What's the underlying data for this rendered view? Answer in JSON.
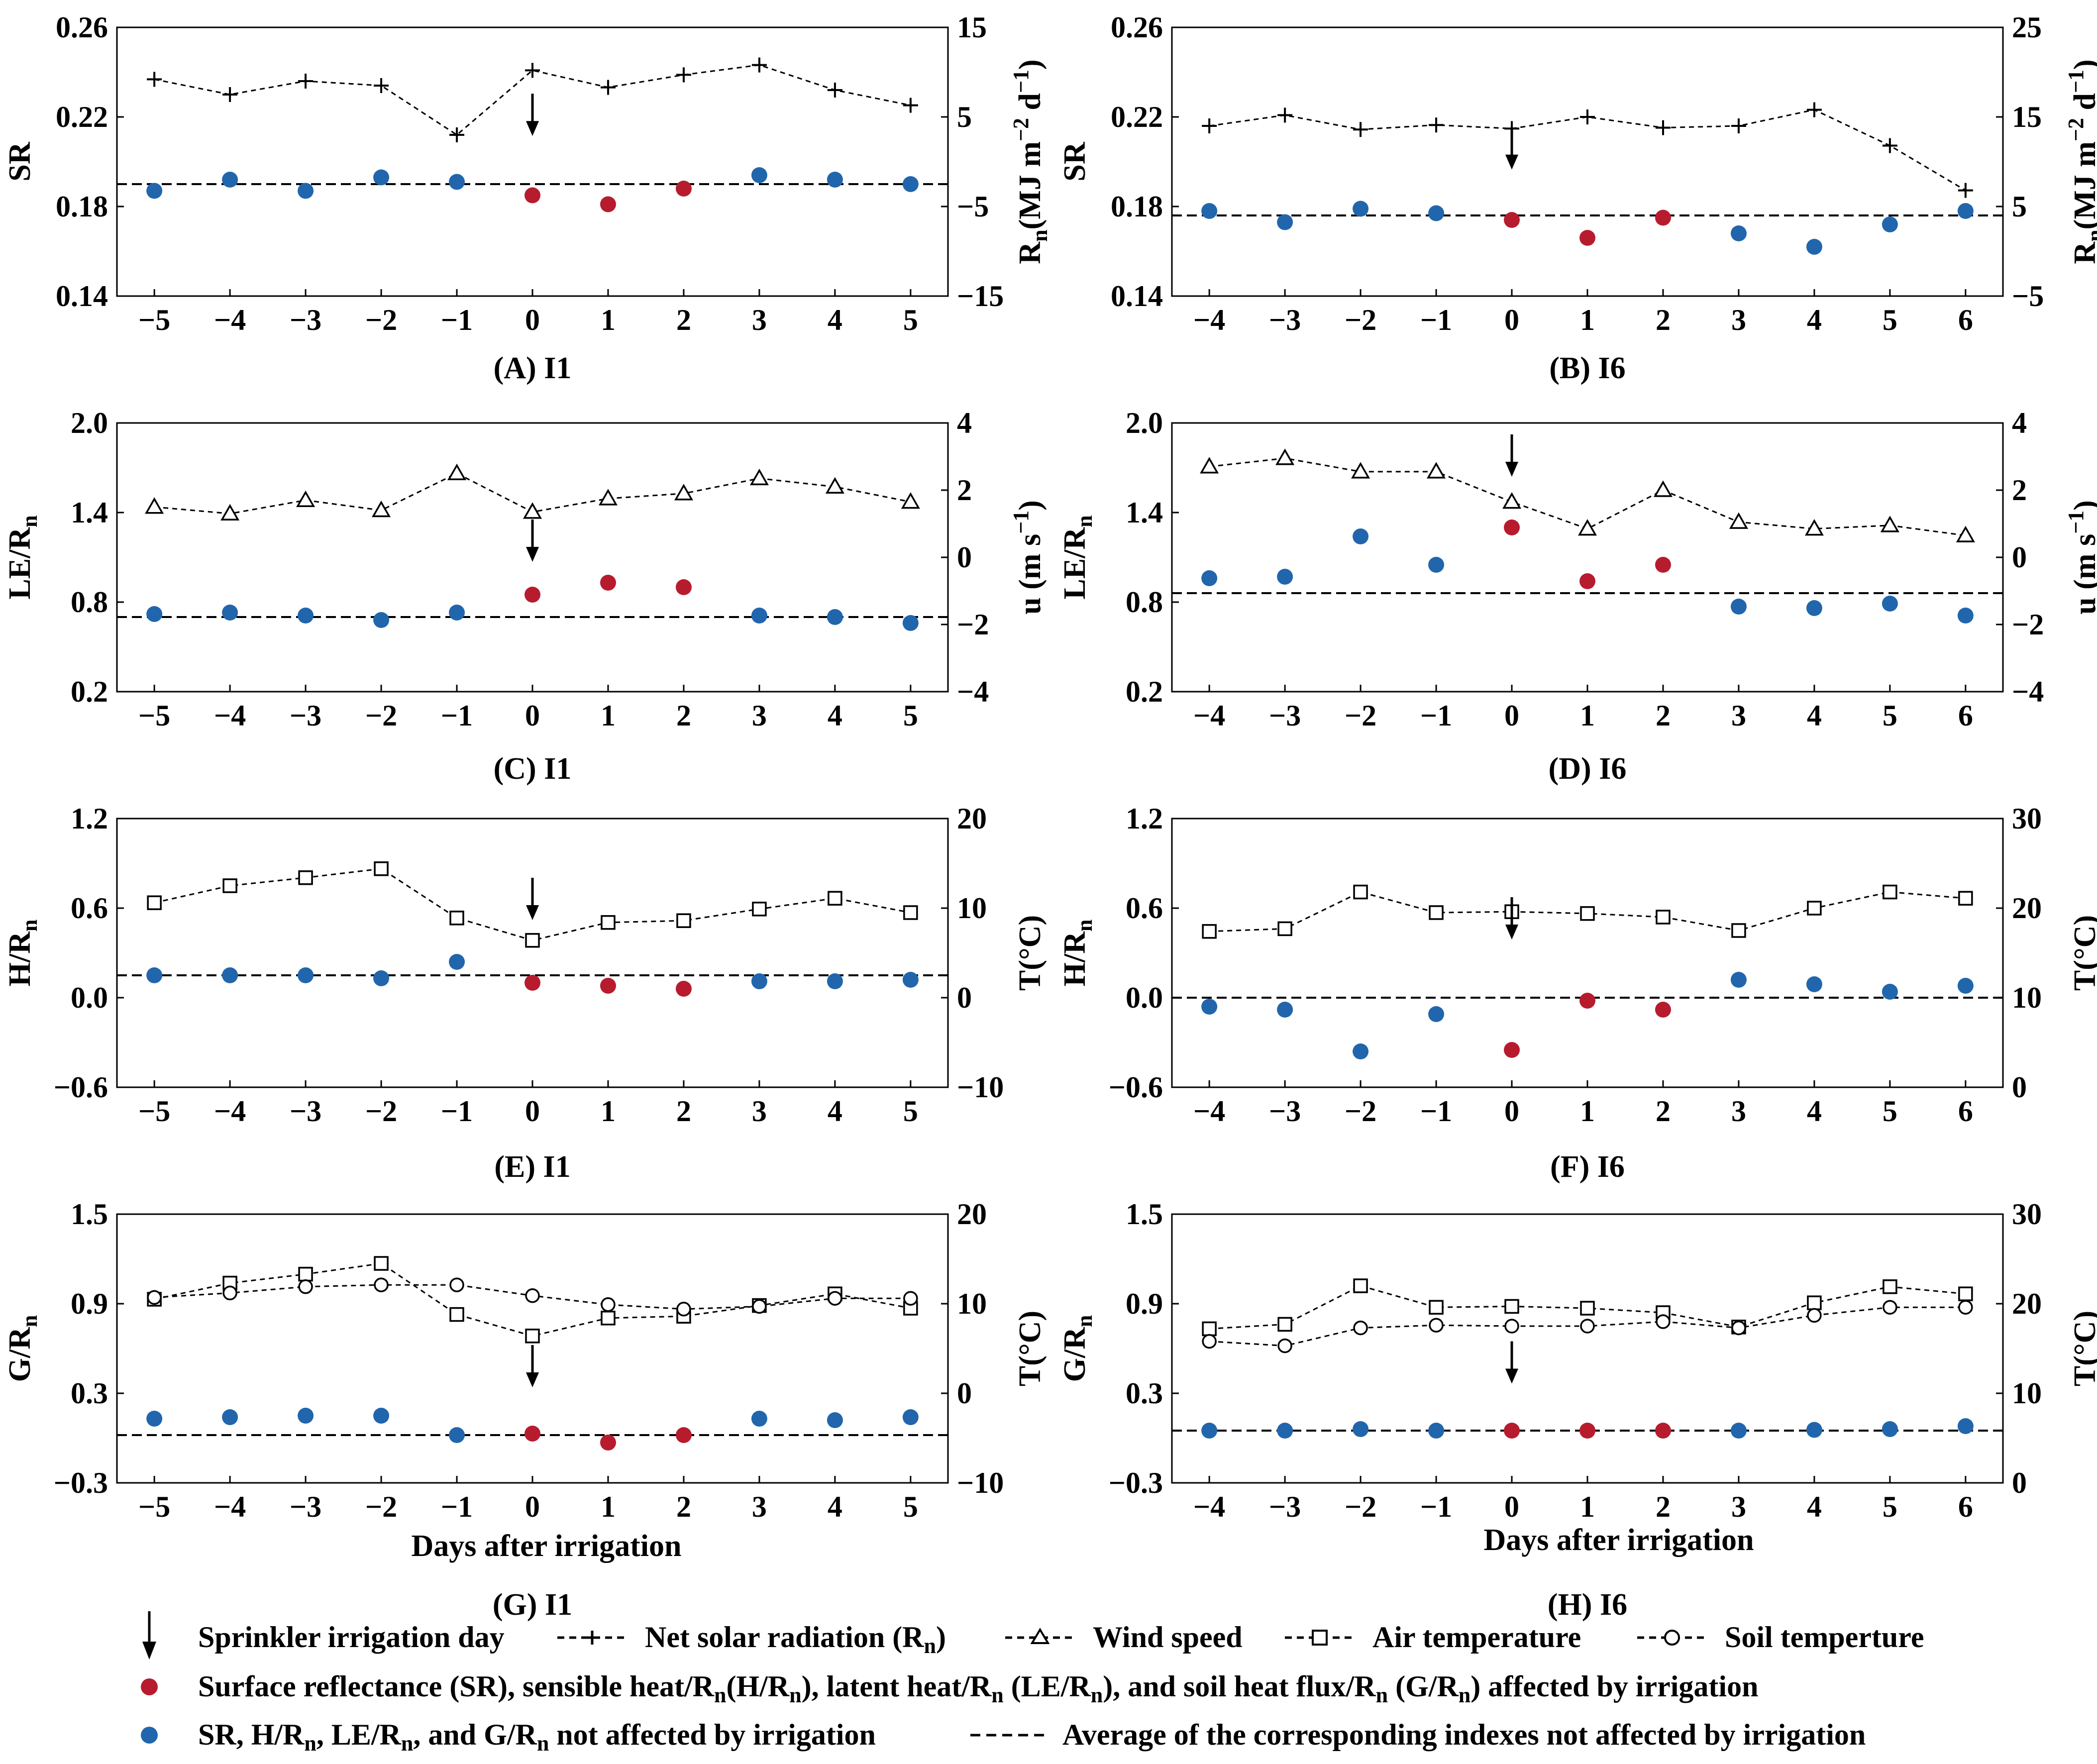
{
  "colors": {
    "affected": "#b71c2e",
    "unaffected": "#2166ac",
    "line": "#000000"
  },
  "x_label": "Days after irrigation",
  "legend": {
    "arrow": "Sprinkler irrigation day",
    "rn_prefix": "Net solar radiation (R",
    "rn_sub": "n",
    "rn_suffix": ")",
    "wind": "Wind speed",
    "air": "Air temperature",
    "soil": "Soil temperture",
    "red_parts": [
      "Surface reflectance (SR), sensible heat/R",
      "n",
      "(H/R",
      "n",
      "), latent heat/R",
      "n",
      " (LE/R",
      "n",
      "), and soil heat flux/R",
      "n",
      " (G/R",
      "n",
      ") affected by irrigation"
    ],
    "blue_parts": [
      "SR, H/R",
      "n",
      ", LE/R",
      "n",
      ", and G/R",
      "n",
      " not affected by irrigation"
    ],
    "avg": "Average of the corresponding indexes not affected by irrigation"
  },
  "chart_data": [
    {
      "id": "A",
      "type": "scatter+line",
      "title": "(A) I1",
      "x": [
        -5,
        -4,
        -3,
        -2,
        -1,
        0,
        1,
        2,
        3,
        4,
        5
      ],
      "xticks": [
        "−5",
        "−4",
        "−3",
        "−2",
        "−1",
        "0",
        "1",
        "2",
        "3",
        "4",
        "5"
      ],
      "ylabel": "SR",
      "ylim": [
        0.14,
        0.26
      ],
      "yticks": [
        "0.14",
        "0.18",
        "0.22",
        "0.26"
      ],
      "ytick_values": [
        0.14,
        0.18,
        0.22,
        0.26
      ],
      "y2label": "Rn(MJ m−2 d−1)",
      "y2lim": [
        -15,
        15
      ],
      "y2ticks": [
        "−15",
        "−5",
        "5",
        "15"
      ],
      "y2tick_values": [
        -15,
        -5,
        5,
        15
      ],
      "index": [
        0.187,
        0.192,
        0.187,
        0.193,
        0.191,
        0.185,
        0.181,
        0.188,
        0.194,
        0.192,
        0.19
      ],
      "affected": [
        false,
        false,
        false,
        false,
        false,
        true,
        true,
        true,
        false,
        false,
        false
      ],
      "average": 0.19,
      "series": [
        {
          "name": "Net solar radiation (Rn)",
          "marker": "plus",
          "values": [
            9.2,
            7.5,
            9.0,
            8.5,
            3.0,
            10.2,
            8.3,
            9.7,
            10.8,
            8.0,
            6.3
          ]
        }
      ],
      "irrigation_day": 0,
      "arrow_value": 0.2115
    },
    {
      "id": "B",
      "type": "scatter+line",
      "title": "(B) I6",
      "x": [
        -4,
        -3,
        -2,
        -1,
        0,
        1,
        2,
        3,
        4,
        5,
        6
      ],
      "xticks": [
        "−4",
        "−3",
        "−2",
        "−1",
        "0",
        "1",
        "2",
        "3",
        "4",
        "5",
        "6"
      ],
      "ylabel": "SR",
      "ylim": [
        0.14,
        0.26
      ],
      "yticks": [
        "0.14",
        "0.18",
        "0.22",
        "0.26"
      ],
      "ytick_values": [
        0.14,
        0.18,
        0.22,
        0.26
      ],
      "y2label": "Rn(MJ m−2 d−1)",
      "y2lim": [
        -5,
        25
      ],
      "y2ticks": [
        "−5",
        "5",
        "15",
        "25"
      ],
      "y2tick_values": [
        -5,
        5,
        15,
        25
      ],
      "index": [
        0.178,
        0.173,
        0.179,
        0.177,
        0.174,
        0.166,
        0.175,
        0.168,
        0.162,
        0.172,
        0.178
      ],
      "affected": [
        false,
        false,
        false,
        false,
        true,
        true,
        true,
        false,
        false,
        false,
        false
      ],
      "average": 0.176,
      "series": [
        {
          "name": "Net solar radiation (Rn)",
          "marker": "plus",
          "values": [
            14.0,
            15.2,
            13.6,
            14.1,
            13.7,
            15.0,
            13.8,
            14.0,
            15.8,
            11.8,
            6.8
          ]
        }
      ],
      "irrigation_day": 0,
      "arrow_value": 0.1965
    },
    {
      "id": "C",
      "type": "scatter+line",
      "title": "(C) I1",
      "x": [
        -5,
        -4,
        -3,
        -2,
        -1,
        0,
        1,
        2,
        3,
        4,
        5
      ],
      "xticks": [
        "−5",
        "−4",
        "−3",
        "−2",
        "−1",
        "0",
        "1",
        "2",
        "3",
        "4",
        "5"
      ],
      "ylabel": "LE/Rn",
      "ylim": [
        0.2,
        2.0
      ],
      "yticks": [
        "0.2",
        "0.8",
        "1.4",
        "2.0"
      ],
      "ytick_values": [
        0.2,
        0.8,
        1.4,
        2.0
      ],
      "y2label": "u (m s−1)",
      "y2lim": [
        -4,
        4
      ],
      "y2ticks": [
        "−4",
        "−2",
        "0",
        "2",
        "4"
      ],
      "y2tick_values": [
        -4,
        -2,
        0,
        2,
        4
      ],
      "index": [
        0.72,
        0.73,
        0.71,
        0.68,
        0.73,
        0.85,
        0.93,
        0.9,
        0.71,
        0.7,
        0.66
      ],
      "affected": [
        false,
        false,
        false,
        false,
        false,
        true,
        true,
        true,
        false,
        false,
        false
      ],
      "average": 0.7,
      "series": [
        {
          "name": "Wind speed",
          "marker": "triangle",
          "values": [
            1.5,
            1.3,
            1.7,
            1.4,
            2.5,
            1.35,
            1.75,
            1.9,
            2.35,
            2.1,
            1.65
          ]
        }
      ],
      "irrigation_day": 0,
      "arrow_value": 1.07
    },
    {
      "id": "D",
      "type": "scatter+line",
      "title": "(D) I6",
      "x": [
        -4,
        -3,
        -2,
        -1,
        0,
        1,
        2,
        3,
        4,
        5,
        6
      ],
      "xticks": [
        "−4",
        "−3",
        "−2",
        "−1",
        "0",
        "1",
        "2",
        "3",
        "4",
        "5",
        "6"
      ],
      "ylabel": "LE/Rn",
      "ylim": [
        0.2,
        2.0
      ],
      "yticks": [
        "0.2",
        "0.8",
        "1.4",
        "2.0"
      ],
      "ytick_values": [
        0.2,
        0.8,
        1.4,
        2.0
      ],
      "y2label": "u (m s−1)",
      "y2lim": [
        -4,
        4
      ],
      "y2ticks": [
        "−4",
        "−2",
        "0",
        "2",
        "4"
      ],
      "y2tick_values": [
        -4,
        -2,
        0,
        2,
        4
      ],
      "index": [
        0.96,
        0.97,
        1.24,
        1.05,
        1.3,
        0.94,
        1.05,
        0.77,
        0.76,
        0.79,
        0.71
      ],
      "affected": [
        false,
        false,
        false,
        false,
        true,
        true,
        true,
        false,
        false,
        false,
        false
      ],
      "average": 0.86,
      "series": [
        {
          "name": "Wind speed",
          "marker": "triangle",
          "values": [
            2.7,
            2.95,
            2.55,
            2.55,
            1.65,
            0.85,
            2.0,
            1.05,
            0.85,
            0.95,
            0.65
          ]
        }
      ],
      "irrigation_day": 0,
      "arrow_value": 1.64
    },
    {
      "id": "E",
      "type": "scatter+line",
      "title": "(E) I1",
      "x": [
        -5,
        -4,
        -3,
        -2,
        -1,
        0,
        1,
        2,
        3,
        4,
        5
      ],
      "xticks": [
        "−5",
        "−4",
        "−3",
        "−2",
        "−1",
        "0",
        "1",
        "2",
        "3",
        "4",
        "5"
      ],
      "ylabel": "H/Rn",
      "ylim": [
        -0.6,
        1.2
      ],
      "yticks": [
        "−0.6",
        "0.0",
        "0.6",
        "1.2"
      ],
      "ytick_values": [
        -0.6,
        0.0,
        0.6,
        1.2
      ],
      "y2label": "T(°C)",
      "y2lim": [
        -10,
        20
      ],
      "y2ticks": [
        "−10",
        "0",
        "10",
        "20"
      ],
      "y2tick_values": [
        -10,
        0,
        10,
        20
      ],
      "index": [
        0.15,
        0.15,
        0.15,
        0.13,
        0.24,
        0.1,
        0.08,
        0.06,
        0.11,
        0.11,
        0.12
      ],
      "affected": [
        false,
        false,
        false,
        false,
        false,
        true,
        true,
        true,
        false,
        false,
        false
      ],
      "average": 0.15,
      "series": [
        {
          "name": "Air temperature",
          "marker": "square",
          "values": [
            10.6,
            12.5,
            13.4,
            14.4,
            8.9,
            6.4,
            8.4,
            8.6,
            9.9,
            11.1,
            9.5
          ]
        }
      ],
      "irrigation_day": 0,
      "arrow_value": 0.52
    },
    {
      "id": "F",
      "type": "scatter+line",
      "title": "(F) I6",
      "x": [
        -4,
        -3,
        -2,
        -1,
        0,
        1,
        2,
        3,
        4,
        5,
        6
      ],
      "xticks": [
        "−4",
        "−3",
        "−2",
        "−1",
        "0",
        "1",
        "2",
        "3",
        "4",
        "5",
        "6"
      ],
      "ylabel": "H/Rn",
      "ylim": [
        -0.6,
        1.2
      ],
      "yticks": [
        "−0.6",
        "0.0",
        "0.6",
        "1.2"
      ],
      "ytick_values": [
        -0.6,
        0.0,
        0.6,
        1.2
      ],
      "y2label": "T(°C)",
      "y2lim": [
        0,
        30
      ],
      "y2ticks": [
        "0",
        "10",
        "20",
        "30"
      ],
      "y2tick_values": [
        0,
        10,
        20,
        30
      ],
      "index": [
        -0.06,
        -0.08,
        -0.36,
        -0.11,
        -0.35,
        -0.02,
        -0.08,
        0.12,
        0.09,
        0.04,
        0.08
      ],
      "affected": [
        false,
        false,
        false,
        false,
        true,
        true,
        true,
        false,
        false,
        false,
        false
      ],
      "average": 0.0,
      "series": [
        {
          "name": "Air temperature",
          "marker": "square",
          "values": [
            17.4,
            17.7,
            21.8,
            19.5,
            19.6,
            19.4,
            19.0,
            17.5,
            20.0,
            21.8,
            21.1
          ]
        }
      ],
      "irrigation_day": 0,
      "arrow_value": 0.39
    },
    {
      "id": "G",
      "type": "scatter+line",
      "title": "(G) I1",
      "x": [
        -5,
        -4,
        -3,
        -2,
        -1,
        0,
        1,
        2,
        3,
        4,
        5
      ],
      "xticks": [
        "−5",
        "−4",
        "−3",
        "−2",
        "−1",
        "0",
        "1",
        "2",
        "3",
        "4",
        "5"
      ],
      "ylabel": "G/Rn",
      "ylim": [
        -0.3,
        1.5
      ],
      "yticks": [
        "−0.3",
        "0.3",
        "0.9",
        "1.5"
      ],
      "ytick_values": [
        -0.3,
        0.3,
        0.9,
        1.5
      ],
      "y2label": "T(°C)",
      "y2lim": [
        -10,
        20
      ],
      "y2ticks": [
        "−10",
        "0",
        "10",
        "20"
      ],
      "y2tick_values": [
        -10,
        0,
        10,
        20
      ],
      "index": [
        0.13,
        0.14,
        0.15,
        0.15,
        0.02,
        0.03,
        -0.03,
        0.02,
        0.13,
        0.12,
        0.14
      ],
      "affected": [
        false,
        false,
        false,
        false,
        false,
        true,
        true,
        true,
        false,
        false,
        false
      ],
      "average": 0.02,
      "series": [
        {
          "name": "Air temperature",
          "marker": "square",
          "values": [
            10.5,
            12.3,
            13.3,
            14.5,
            8.8,
            6.4,
            8.4,
            8.6,
            9.8,
            11.1,
            9.5
          ]
        },
        {
          "name": "Soil temperture",
          "marker": "circle",
          "values": [
            10.7,
            11.2,
            11.9,
            12.1,
            12.1,
            10.9,
            9.9,
            9.4,
            9.7,
            10.6,
            10.6
          ]
        }
      ],
      "irrigation_day": 0,
      "arrow_value": 0.34
    },
    {
      "id": "H",
      "type": "scatter+line",
      "title": "(H) I6",
      "x": [
        -4,
        -3,
        -2,
        -1,
        0,
        1,
        2,
        3,
        4,
        5,
        6
      ],
      "xticks": [
        "−4",
        "−3",
        "−2",
        "−1",
        "0",
        "1",
        "2",
        "3",
        "4",
        "5",
        "6"
      ],
      "ylabel": "G/Rn",
      "ylim": [
        -0.3,
        1.5
      ],
      "yticks": [
        "−0.3",
        "0.3",
        "0.9",
        "1.5"
      ],
      "ytick_values": [
        -0.3,
        0.3,
        0.9,
        1.5
      ],
      "y2label": "T(°C)",
      "y2lim": [
        0,
        30
      ],
      "y2ticks": [
        "0",
        "10",
        "20",
        "30"
      ],
      "y2tick_values": [
        0,
        10,
        20,
        30
      ],
      "index": [
        0.05,
        0.05,
        0.06,
        0.05,
        0.05,
        0.05,
        0.05,
        0.05,
        0.055,
        0.06,
        0.08
      ],
      "affected": [
        false,
        false,
        false,
        false,
        true,
        true,
        true,
        false,
        false,
        false,
        false
      ],
      "average": 0.05,
      "series": [
        {
          "name": "Air temperature",
          "marker": "square",
          "values": [
            17.2,
            17.7,
            22.0,
            19.6,
            19.7,
            19.5,
            19.0,
            17.4,
            20.1,
            21.9,
            21.1
          ]
        },
        {
          "name": "Soil temperture",
          "marker": "circle",
          "values": [
            15.8,
            15.3,
            17.3,
            17.6,
            17.5,
            17.5,
            18.0,
            17.3,
            18.7,
            19.6,
            19.6
          ]
        }
      ],
      "irrigation_day": 0,
      "arrow_value": 0.365
    }
  ]
}
